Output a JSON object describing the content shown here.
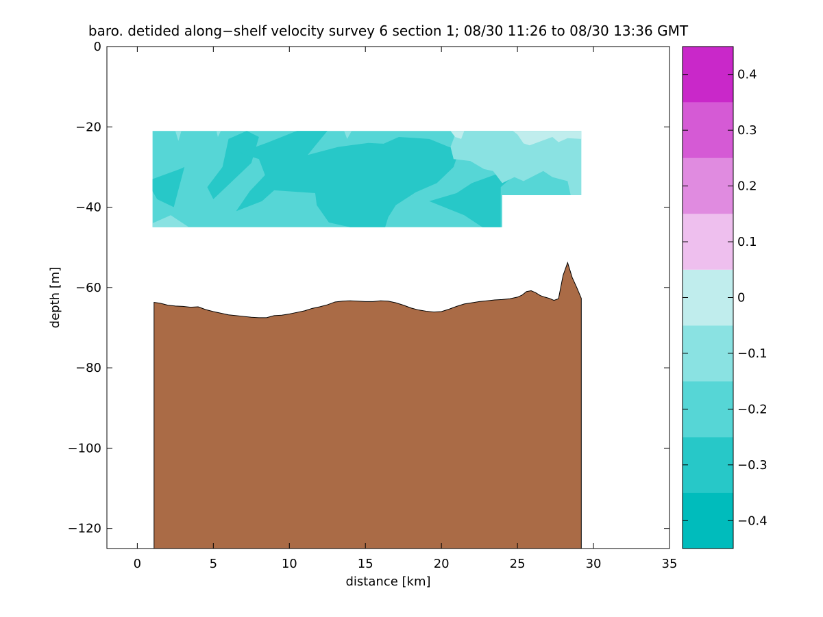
{
  "chart_data": {
    "type": "heatmap",
    "title": "baro. detided along−shelf velocity survey 6 section 1; 08/30 11:26 to 08/30 13:36 GMT",
    "xlabel": "distance [km]",
    "ylabel": "depth [m]",
    "xlim": [
      -2,
      35
    ],
    "ylim": [
      -125,
      0
    ],
    "x_ticks": [
      0,
      5,
      10,
      15,
      20,
      25,
      30,
      35
    ],
    "y_ticks": [
      0,
      -20,
      -40,
      -60,
      -80,
      -100,
      -120
    ],
    "grid": false,
    "colorbar": {
      "clim": [
        -0.45,
        0.45
      ],
      "levels": [
        -0.45,
        -0.35,
        -0.25,
        -0.15,
        -0.05,
        0.05,
        0.15,
        0.25,
        0.35,
        0.45
      ],
      "colors": [
        "#00bcbc",
        "#27c8c8",
        "#56d6d6",
        "#8ae2e2",
        "#c0eded",
        "#eebfee",
        "#e08be0",
        "#d55ad5",
        "#c928c9",
        "#bc00bc"
      ],
      "ticks": [
        0.4,
        0.3,
        0.2,
        0.1,
        0,
        -0.1,
        -0.2,
        -0.3,
        -0.4
      ],
      "tick_labels": [
        "0.4",
        "0.3",
        "0.2",
        "0.1",
        "0",
        "−0.1",
        "−0.2",
        "−0.3",
        "−0.4"
      ]
    },
    "data_region": {
      "x_range": [
        1,
        29.2
      ],
      "depth_top": -21,
      "depth_bottom_until_24km": -45,
      "depth_bottom_after_24km": -37,
      "step_at_km": 24
    },
    "dominant_values": [
      {
        "x": [
          1,
          29.2
        ],
        "depth": [
          -21,
          -45
        ],
        "value": -0.25
      },
      {
        "x": [
          8,
          23
        ],
        "depth": [
          -23,
          -45
        ],
        "value": -0.35
      },
      {
        "x": [
          25,
          29
        ],
        "depth": [
          -21,
          -25
        ],
        "value": -0.05
      },
      {
        "x": [
          21,
          29
        ],
        "depth": [
          -21,
          -37
        ],
        "value": -0.15
      }
    ],
    "bathymetry": {
      "x": [
        1.1,
        1.5,
        2.0,
        2.5,
        3.0,
        3.5,
        4.0,
        4.5,
        5.0,
        5.5,
        6.0,
        6.5,
        7.0,
        7.5,
        8.0,
        8.5,
        9.0,
        9.5,
        10.0,
        10.5,
        11.0,
        11.5,
        12.0,
        12.5,
        13.0,
        13.5,
        14.0,
        14.5,
        15.0,
        15.5,
        16.0,
        16.5,
        17.0,
        17.5,
        18.0,
        18.5,
        19.0,
        19.5,
        20.0,
        20.5,
        21.0,
        21.5,
        22.0,
        22.5,
        23.0,
        23.5,
        24.0,
        24.5,
        25.0,
        25.3,
        25.6,
        25.9,
        26.2,
        26.5,
        26.8,
        27.1,
        27.4,
        27.7,
        28.0,
        28.3,
        28.6,
        28.9,
        29.2
      ],
      "depth": [
        -63.7,
        -63.9,
        -64.4,
        -64.6,
        -64.7,
        -64.9,
        -64.8,
        -65.5,
        -66.0,
        -66.4,
        -66.8,
        -67.0,
        -67.2,
        -67.4,
        -67.5,
        -67.5,
        -67.0,
        -66.9,
        -66.6,
        -66.2,
        -65.8,
        -65.2,
        -64.8,
        -64.3,
        -63.6,
        -63.4,
        -63.3,
        -63.4,
        -63.5,
        -63.5,
        -63.3,
        -63.4,
        -63.8,
        -64.4,
        -65.1,
        -65.6,
        -65.9,
        -66.1,
        -66.0,
        -65.4,
        -64.7,
        -64.1,
        -63.8,
        -63.5,
        -63.3,
        -63.1,
        -63.0,
        -62.8,
        -62.4,
        -61.9,
        -61.0,
        -60.8,
        -61.3,
        -62.0,
        -62.4,
        -62.7,
        -63.2,
        -62.8,
        -57.0,
        -53.8,
        -57.5,
        -60.0,
        -62.7
      ],
      "color": "#aa6b46"
    }
  }
}
